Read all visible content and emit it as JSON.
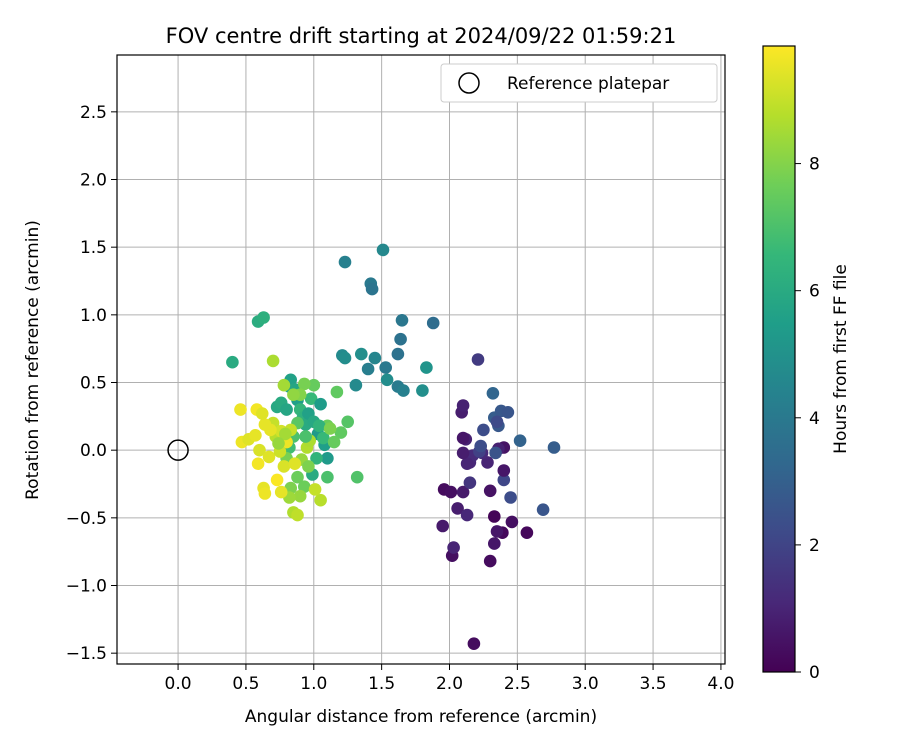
{
  "chart_data": {
    "type": "scatter",
    "title": "FOV centre drift starting at 2024/09/22 01:59:21",
    "xlabel": "Angular distance from reference (arcmin)",
    "ylabel": "Rotation from reference (arcmin)",
    "xlim": [
      -0.45,
      4.03
    ],
    "ylim": [
      -1.58,
      2.92
    ],
    "xticks": [
      0.0,
      0.5,
      1.0,
      1.5,
      2.0,
      2.5,
      3.0,
      3.5,
      4.0
    ],
    "xtick_labels": [
      "0.0",
      "0.5",
      "1.0",
      "1.5",
      "2.0",
      "2.5",
      "3.0",
      "3.5",
      "4.0"
    ],
    "yticks": [
      -1.5,
      -1.0,
      -0.5,
      0.0,
      0.5,
      1.0,
      1.5,
      2.0,
      2.5
    ],
    "ytick_labels": [
      "−1.5",
      "−1.0",
      "−0.5",
      "0.0",
      "0.5",
      "1.0",
      "1.5",
      "2.0",
      "2.5"
    ],
    "grid": true,
    "legend": {
      "position": "top-right",
      "entries": [
        {
          "label": "Reference platepar",
          "marker": "open-circle"
        }
      ]
    },
    "reference_point": {
      "x": 0.0,
      "y": 0.0
    },
    "colorbar": {
      "label": "Hours from first FF file",
      "colormap": "viridis",
      "range": [
        0,
        9.85
      ],
      "ticks": [
        0,
        2,
        4,
        6,
        8
      ],
      "tick_labels": [
        "0",
        "2",
        "4",
        "6",
        "8"
      ],
      "stops": [
        "#440154",
        "#482878",
        "#3e4a89",
        "#31688e",
        "#26828e",
        "#1f9e89",
        "#35b779",
        "#6ece58",
        "#b5de2b",
        "#fde725"
      ]
    },
    "points": [
      {
        "x": 2.33,
        "y": -0.49,
        "h": 0.1
      },
      {
        "x": 2.39,
        "y": -0.61,
        "h": 0.2
      },
      {
        "x": 2.3,
        "y": -0.82,
        "h": 0.3
      },
      {
        "x": 2.57,
        "y": -0.61,
        "h": 0.2
      },
      {
        "x": 2.46,
        "y": -0.53,
        "h": 0.4
      },
      {
        "x": 2.02,
        "y": -0.78,
        "h": 0.4
      },
      {
        "x": 2.33,
        "y": -0.69,
        "h": 0.6
      },
      {
        "x": 2.35,
        "y": -0.6,
        "h": 0.6
      },
      {
        "x": 2.3,
        "y": -0.3,
        "h": 0.5
      },
      {
        "x": 1.96,
        "y": -0.29,
        "h": 0.3
      },
      {
        "x": 2.01,
        "y": -0.31,
        "h": 0.4
      },
      {
        "x": 2.1,
        "y": -0.31,
        "h": 0.7
      },
      {
        "x": 1.95,
        "y": -0.56,
        "h": 0.7
      },
      {
        "x": 2.06,
        "y": -0.43,
        "h": 0.8
      },
      {
        "x": 2.03,
        "y": -0.72,
        "h": 1.0
      },
      {
        "x": 2.13,
        "y": -0.48,
        "h": 1.1
      },
      {
        "x": 2.18,
        "y": -1.43,
        "h": 0.3
      },
      {
        "x": 2.4,
        "y": -0.22,
        "h": 2.1
      },
      {
        "x": 2.45,
        "y": -0.35,
        "h": 2.3
      },
      {
        "x": 2.69,
        "y": -0.44,
        "h": 2.6
      },
      {
        "x": 2.4,
        "y": -0.15,
        "h": 0.6
      },
      {
        "x": 2.4,
        "y": 0.02,
        "h": 0.5
      },
      {
        "x": 2.36,
        "y": 0.01,
        "h": 0.9
      },
      {
        "x": 2.28,
        "y": -0.09,
        "h": 1.0
      },
      {
        "x": 2.24,
        "y": -0.02,
        "h": 1.2
      },
      {
        "x": 2.15,
        "y": -0.09,
        "h": 1.1
      },
      {
        "x": 2.17,
        "y": -0.04,
        "h": 1.2
      },
      {
        "x": 2.13,
        "y": -0.1,
        "h": 1.0
      },
      {
        "x": 2.1,
        "y": -0.02,
        "h": 0.8
      },
      {
        "x": 2.12,
        "y": 0.08,
        "h": 0.9
      },
      {
        "x": 2.1,
        "y": 0.09,
        "h": 0.6
      },
      {
        "x": 2.09,
        "y": 0.28,
        "h": 0.8
      },
      {
        "x": 2.1,
        "y": 0.33,
        "h": 0.9
      },
      {
        "x": 2.15,
        "y": -0.24,
        "h": 1.5
      },
      {
        "x": 2.22,
        "y": -0.01,
        "h": 1.9
      },
      {
        "x": 2.23,
        "y": 0.03,
        "h": 2.3
      },
      {
        "x": 2.25,
        "y": 0.15,
        "h": 2.3
      },
      {
        "x": 2.34,
        "y": -0.02,
        "h": 2.5
      },
      {
        "x": 2.36,
        "y": 0.18,
        "h": 2.7
      },
      {
        "x": 2.33,
        "y": 0.24,
        "h": 2.9
      },
      {
        "x": 2.38,
        "y": 0.29,
        "h": 2.7
      },
      {
        "x": 2.43,
        "y": 0.28,
        "h": 2.6
      },
      {
        "x": 2.52,
        "y": 0.07,
        "h": 3.1
      },
      {
        "x": 2.77,
        "y": 0.02,
        "h": 2.9
      },
      {
        "x": 2.21,
        "y": 0.67,
        "h": 1.7
      },
      {
        "x": 2.32,
        "y": 0.42,
        "h": 3.2
      },
      {
        "x": 2.35,
        "y": 0.21,
        "h": 2.2
      },
      {
        "x": 1.23,
        "y": 1.39,
        "h": 4.3
      },
      {
        "x": 1.51,
        "y": 1.48,
        "h": 4.6
      },
      {
        "x": 1.42,
        "y": 1.23,
        "h": 4.0
      },
      {
        "x": 1.43,
        "y": 1.19,
        "h": 3.8
      },
      {
        "x": 1.65,
        "y": 0.96,
        "h": 3.9
      },
      {
        "x": 1.88,
        "y": 0.94,
        "h": 3.5
      },
      {
        "x": 1.64,
        "y": 0.82,
        "h": 3.7
      },
      {
        "x": 1.62,
        "y": 0.71,
        "h": 3.7
      },
      {
        "x": 1.45,
        "y": 0.68,
        "h": 4.5
      },
      {
        "x": 1.53,
        "y": 0.61,
        "h": 4.0
      },
      {
        "x": 1.4,
        "y": 0.6,
        "h": 4.2
      },
      {
        "x": 1.35,
        "y": 0.71,
        "h": 4.9
      },
      {
        "x": 1.21,
        "y": 0.7,
        "h": 4.7
      },
      {
        "x": 1.23,
        "y": 0.68,
        "h": 4.8
      },
      {
        "x": 1.31,
        "y": 0.48,
        "h": 4.7
      },
      {
        "x": 1.54,
        "y": 0.52,
        "h": 4.8
      },
      {
        "x": 1.62,
        "y": 0.47,
        "h": 4.1
      },
      {
        "x": 1.66,
        "y": 0.44,
        "h": 4.3
      },
      {
        "x": 1.8,
        "y": 0.44,
        "h": 4.9
      },
      {
        "x": 1.83,
        "y": 0.61,
        "h": 5.1
      },
      {
        "x": 0.4,
        "y": 0.65,
        "h": 6.0
      },
      {
        "x": 0.59,
        "y": 0.95,
        "h": 6.1
      },
      {
        "x": 0.63,
        "y": 0.98,
        "h": 6.2
      },
      {
        "x": 0.7,
        "y": 0.66,
        "h": 8.6
      },
      {
        "x": 0.73,
        "y": 0.32,
        "h": 5.9
      },
      {
        "x": 0.76,
        "y": 0.35,
        "h": 6.0
      },
      {
        "x": 0.8,
        "y": 0.3,
        "h": 5.8
      },
      {
        "x": 0.82,
        "y": 0.47,
        "h": 5.7
      },
      {
        "x": 0.83,
        "y": 0.52,
        "h": 5.6
      },
      {
        "x": 0.86,
        "y": 0.45,
        "h": 5.8
      },
      {
        "x": 0.88,
        "y": 0.37,
        "h": 5.5
      },
      {
        "x": 0.9,
        "y": 0.3,
        "h": 6.5
      },
      {
        "x": 0.92,
        "y": 0.24,
        "h": 6.3
      },
      {
        "x": 0.94,
        "y": 0.19,
        "h": 6.0
      },
      {
        "x": 0.96,
        "y": 0.27,
        "h": 5.6
      },
      {
        "x": 0.98,
        "y": 0.38,
        "h": 6.6
      },
      {
        "x": 1.0,
        "y": 0.21,
        "h": 5.9
      },
      {
        "x": 1.03,
        "y": 0.12,
        "h": 5.3
      },
      {
        "x": 1.05,
        "y": 0.34,
        "h": 5.4
      },
      {
        "x": 1.08,
        "y": 0.04,
        "h": 5.5
      },
      {
        "x": 1.1,
        "y": -0.06,
        "h": 5.3
      },
      {
        "x": 0.99,
        "y": -0.18,
        "h": 6.0
      },
      {
        "x": 1.02,
        "y": -0.06,
        "h": 6.4
      },
      {
        "x": 1.1,
        "y": -0.2,
        "h": 7.0
      },
      {
        "x": 1.32,
        "y": -0.2,
        "h": 7.1
      },
      {
        "x": 1.17,
        "y": 0.43,
        "h": 7.4
      },
      {
        "x": 1.25,
        "y": 0.21,
        "h": 7.2
      },
      {
        "x": 1.2,
        "y": 0.13,
        "h": 7.4
      },
      {
        "x": 1.1,
        "y": 0.18,
        "h": 7.6
      },
      {
        "x": 1.07,
        "y": 0.09,
        "h": 6.6
      },
      {
        "x": 1.0,
        "y": 0.48,
        "h": 7.5
      },
      {
        "x": 0.93,
        "y": 0.49,
        "h": 7.8
      },
      {
        "x": 0.9,
        "y": 0.41,
        "h": 8.0
      },
      {
        "x": 0.85,
        "y": 0.41,
        "h": 8.2
      },
      {
        "x": 0.78,
        "y": 0.48,
        "h": 8.5
      },
      {
        "x": 0.88,
        "y": 0.2,
        "h": 7.3
      },
      {
        "x": 0.85,
        "y": 0.1,
        "h": 7.0
      },
      {
        "x": 0.82,
        "y": 0.02,
        "h": 6.8
      },
      {
        "x": 0.8,
        "y": -0.06,
        "h": 7.8
      },
      {
        "x": 0.91,
        "y": -0.07,
        "h": 8.3
      },
      {
        "x": 0.95,
        "y": 0.02,
        "h": 8.7
      },
      {
        "x": 0.97,
        "y": 0.07,
        "h": 8.6
      },
      {
        "x": 0.96,
        "y": -0.12,
        "h": 7.9
      },
      {
        "x": 0.88,
        "y": -0.2,
        "h": 7.6
      },
      {
        "x": 0.93,
        "y": -0.27,
        "h": 7.6
      },
      {
        "x": 0.83,
        "y": -0.28,
        "h": 7.9
      },
      {
        "x": 0.9,
        "y": -0.34,
        "h": 8.3
      },
      {
        "x": 0.82,
        "y": -0.35,
        "h": 8.4
      },
      {
        "x": 1.05,
        "y": -0.37,
        "h": 8.8
      },
      {
        "x": 1.01,
        "y": -0.29,
        "h": 9.0
      },
      {
        "x": 0.85,
        "y": -0.46,
        "h": 8.7
      },
      {
        "x": 0.88,
        "y": -0.48,
        "h": 8.9
      },
      {
        "x": 0.7,
        "y": 0.2,
        "h": 9.0
      },
      {
        "x": 0.72,
        "y": 0.1,
        "h": 8.8
      },
      {
        "x": 0.76,
        "y": 0.14,
        "h": 9.2
      },
      {
        "x": 0.68,
        "y": 0.15,
        "h": 9.5
      },
      {
        "x": 0.64,
        "y": 0.19,
        "h": 9.5
      },
      {
        "x": 0.58,
        "y": 0.3,
        "h": 9.7
      },
      {
        "x": 0.46,
        "y": 0.3,
        "h": 9.6
      },
      {
        "x": 0.62,
        "y": 0.27,
        "h": 9.4
      },
      {
        "x": 0.47,
        "y": 0.06,
        "h": 9.6
      },
      {
        "x": 0.52,
        "y": 0.08,
        "h": 9.4
      },
      {
        "x": 0.57,
        "y": 0.11,
        "h": 9.5
      },
      {
        "x": 0.6,
        "y": 0.0,
        "h": 9.3
      },
      {
        "x": 0.67,
        "y": -0.05,
        "h": 9.4
      },
      {
        "x": 0.59,
        "y": -0.1,
        "h": 9.7
      },
      {
        "x": 0.63,
        "y": -0.28,
        "h": 9.5
      },
      {
        "x": 0.64,
        "y": -0.32,
        "h": 9.6
      },
      {
        "x": 0.73,
        "y": -0.22,
        "h": 9.8
      },
      {
        "x": 0.76,
        "y": -0.31,
        "h": 9.5
      },
      {
        "x": 0.78,
        "y": -0.12,
        "h": 9.3
      },
      {
        "x": 0.8,
        "y": 0.06,
        "h": 9.6
      },
      {
        "x": 0.75,
        "y": -0.01,
        "h": 9.1
      },
      {
        "x": 0.83,
        "y": 0.15,
        "h": 9.0
      },
      {
        "x": 0.86,
        "y": -0.1,
        "h": 9.4
      },
      {
        "x": 0.79,
        "y": 0.12,
        "h": 8.5
      },
      {
        "x": 0.74,
        "y": 0.05,
        "h": 8.3
      },
      {
        "x": 0.94,
        "y": 0.1,
        "h": 7.0
      },
      {
        "x": 1.04,
        "y": 0.18,
        "h": 6.4
      },
      {
        "x": 1.12,
        "y": 0.16,
        "h": 7.9
      },
      {
        "x": 1.15,
        "y": 0.06,
        "h": 7.5
      }
    ]
  }
}
